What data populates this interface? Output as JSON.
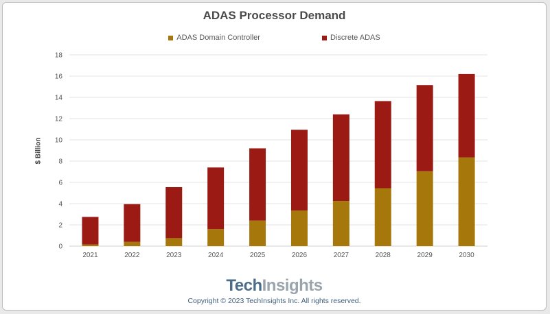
{
  "chart_data": {
    "type": "bar",
    "stacked": true,
    "title": "ADAS Processor Demand",
    "xlabel": "",
    "ylabel": "$ Billion",
    "ylim": [
      0,
      18
    ],
    "yticks": [
      0,
      2,
      4,
      6,
      8,
      10,
      12,
      14,
      16,
      18
    ],
    "grid": true,
    "legend_position": "top",
    "categories": [
      "2021",
      "2022",
      "2023",
      "2024",
      "2025",
      "2026",
      "2027",
      "2028",
      "2029",
      "2030"
    ],
    "series": [
      {
        "name": "ADAS Domain Controller",
        "color": "#a6780c",
        "values": [
          0.15,
          0.4,
          0.75,
          1.6,
          2.4,
          3.35,
          4.25,
          5.45,
          7.05,
          8.35
        ]
      },
      {
        "name": "Discrete ADAS",
        "color": "#9b1b14",
        "values": [
          2.6,
          3.55,
          4.8,
          5.8,
          6.8,
          7.6,
          8.15,
          8.2,
          8.1,
          7.85
        ]
      }
    ]
  },
  "footer": {
    "brand_part1": "Tech",
    "brand_part2": "Insights",
    "copyright": "Copyright © 2023 TechInsights Inc.  All rights reserved."
  }
}
